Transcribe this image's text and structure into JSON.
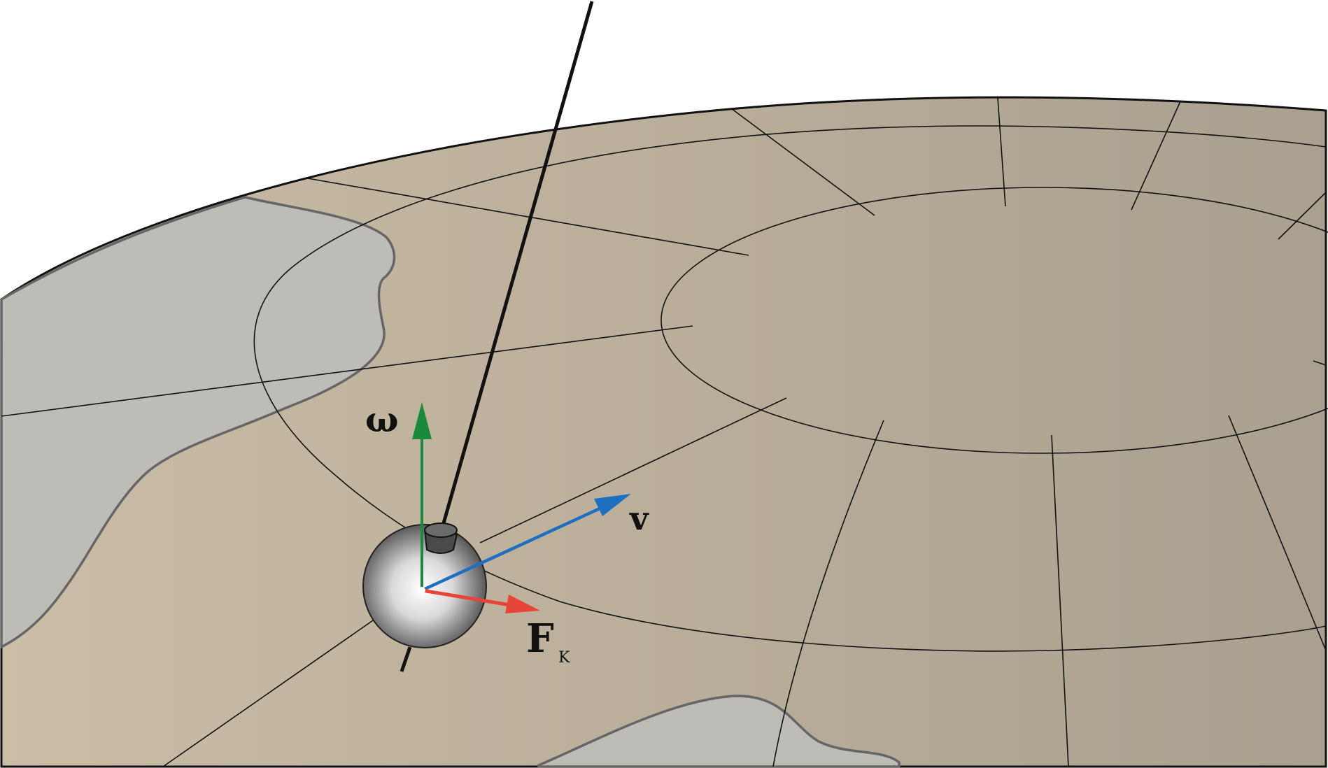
{
  "labels": {
    "omega": "ω",
    "velocity": "v",
    "force": "F",
    "force_subscript": "K"
  },
  "colors": {
    "ground_left": "#cbbda6",
    "ground_right": "#a9a08f",
    "water": "#bdbcb6",
    "omega_arrow": "#1a8a3a",
    "velocity_arrow": "#1f6fc0",
    "force_arrow": "#e8453a",
    "outline": "#111111"
  }
}
